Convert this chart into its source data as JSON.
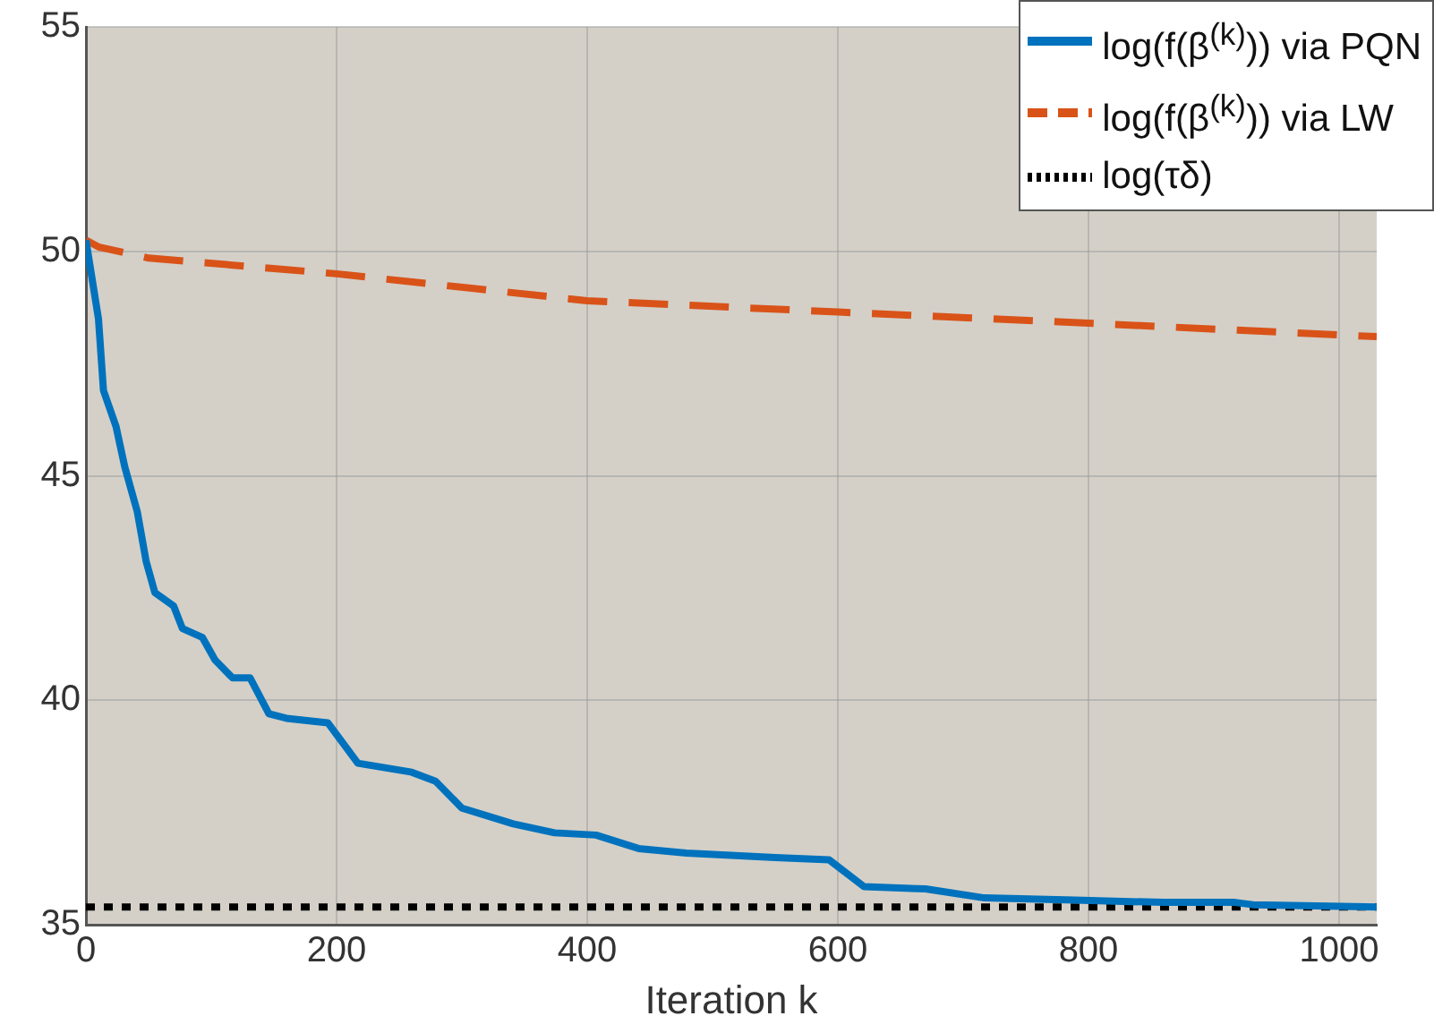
{
  "chart_data": {
    "type": "line",
    "xlabel": "Iteration k",
    "xlim": [
      0,
      1030
    ],
    "xticks": [
      0,
      200,
      400,
      600,
      800,
      1000
    ],
    "ylim": [
      35,
      55
    ],
    "yticks": [
      35,
      40,
      45,
      50,
      55
    ],
    "grid": true,
    "legend": "top right",
    "marker": "none",
    "series": [
      {
        "name": "log(f(β$^{(k)}$)) via PQN",
        "color": "#0072bd",
        "line_style": "solid",
        "x": [
          0,
          10,
          14,
          24,
          31,
          41,
          48,
          55,
          70,
          77,
          93,
          103,
          117,
          131,
          146,
          160,
          193,
          217,
          260,
          279,
          300,
          341,
          374,
          407,
          441,
          479,
          550,
          593,
          621,
          670,
          717,
          789,
          860,
          917,
          931,
          1030
        ],
        "values": [
          50.25,
          48.5,
          46.9,
          46.1,
          45.2,
          44.2,
          43.1,
          42.4,
          42.1,
          41.6,
          41.4,
          40.9,
          40.5,
          40.5,
          39.7,
          39.6,
          39.5,
          38.6,
          38.4,
          38.2,
          37.6,
          37.25,
          37.05,
          37.0,
          36.7,
          36.6,
          36.5,
          36.45,
          35.85,
          35.8,
          35.6,
          35.55,
          35.5,
          35.5,
          35.45,
          35.4
        ]
      },
      {
        "name": "log(f(β$^{(k)}$)) via LW",
        "color": "#d95319",
        "line_style": "dashed",
        "x": [
          0,
          10,
          50,
          200,
          400,
          600,
          800,
          1030
        ],
        "values": [
          50.25,
          50.1,
          49.85,
          49.5,
          48.9,
          48.65,
          48.4,
          48.1
        ]
      },
      {
        "name": "log(τδ)",
        "color": "#000000",
        "line_style": "dotted",
        "x": [
          0,
          1030
        ],
        "values": [
          35.4,
          35.4
        ]
      }
    ]
  }
}
